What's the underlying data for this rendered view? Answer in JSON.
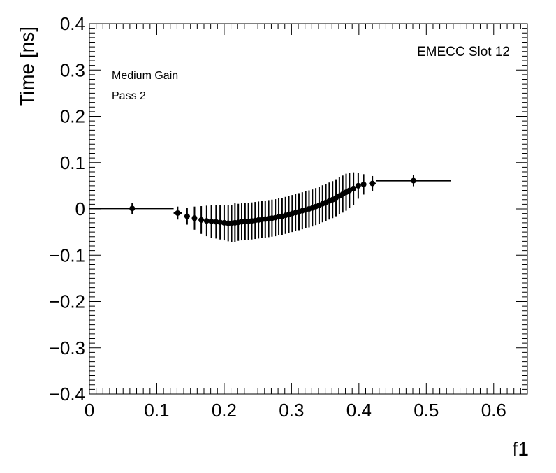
{
  "chart_data": {
    "type": "scatter",
    "title": "",
    "xlabel": "f1",
    "ylabel": "Time [ns]",
    "xlim": [
      0,
      0.65
    ],
    "ylim": [
      -0.4,
      0.4
    ],
    "x_ticks": [
      0,
      0.1,
      0.2,
      0.3,
      0.4,
      0.5,
      0.6
    ],
    "x_tick_labels": [
      "0",
      "0.1",
      "0.2",
      "0.3",
      "0.4",
      "0.5",
      "0.6"
    ],
    "y_ticks": [
      -0.4,
      -0.3,
      -0.2,
      -0.1,
      0,
      0.1,
      0.2,
      0.3,
      0.4
    ],
    "y_tick_labels": [
      "−0.4",
      "−0.3",
      "−0.2",
      "−0.1",
      "0",
      "0.1",
      "0.2",
      "0.3",
      "0.4"
    ],
    "grid": false,
    "annotations": {
      "top_right": "EMECC Slot 12",
      "top_left_line1": "Medium Gain",
      "top_left_line2": "Pass 2"
    },
    "series": [
      {
        "color": "#000000",
        "points": [
          {
            "x": 0.0635,
            "y": 0.001,
            "xerr": [
              0.0635,
              0.0615
            ],
            "yerr": 0.012
          },
          {
            "x": 0.131,
            "y": -0.009,
            "xerr": [
              0.006,
              0.006
            ],
            "yerr": 0.014
          },
          {
            "x": 0.145,
            "y": -0.016,
            "xerr": [
              0.004,
              0.004
            ],
            "yerr": 0.018
          },
          {
            "x": 0.156,
            "y": -0.02,
            "xerr": [
              0.003,
              0.003
            ],
            "yerr": 0.025
          },
          {
            "x": 0.166,
            "y": -0.024,
            "xerr": [
              0.002,
              0.002
            ],
            "yerr": 0.03
          },
          {
            "x": 0.174,
            "y": -0.026,
            "xerr": [
              0.002,
              0.002
            ],
            "yerr": 0.033
          },
          {
            "x": 0.181,
            "y": -0.027,
            "xerr": [
              0.002,
              0.002
            ],
            "yerr": 0.035
          },
          {
            "x": 0.188,
            "y": -0.028,
            "xerr": [
              0.002,
              0.002
            ],
            "yerr": 0.036
          },
          {
            "x": 0.194,
            "y": -0.029,
            "xerr": [
              0.002,
              0.002
            ],
            "yerr": 0.037
          },
          {
            "x": 0.2,
            "y": -0.03,
            "xerr": [
              0.002,
              0.002
            ],
            "yerr": 0.038
          },
          {
            "x": 0.206,
            "y": -0.031,
            "xerr": [
              0.002,
              0.002
            ],
            "yerr": 0.039
          },
          {
            "x": 0.211,
            "y": -0.031,
            "xerr": [
              0.002,
              0.002
            ],
            "yerr": 0.04
          },
          {
            "x": 0.216,
            "y": -0.03,
            "xerr": [
              0.002,
              0.002
            ],
            "yerr": 0.042
          },
          {
            "x": 0.221,
            "y": -0.029,
            "xerr": [
              0.002,
              0.002
            ],
            "yerr": 0.04
          },
          {
            "x": 0.226,
            "y": -0.028,
            "xerr": [
              0.002,
              0.002
            ],
            "yerr": 0.04
          },
          {
            "x": 0.231,
            "y": -0.027,
            "xerr": [
              0.002,
              0.002
            ],
            "yerr": 0.04
          },
          {
            "x": 0.236,
            "y": -0.027,
            "xerr": [
              0.002,
              0.002
            ],
            "yerr": 0.04
          },
          {
            "x": 0.241,
            "y": -0.026,
            "xerr": [
              0.002,
              0.002
            ],
            "yerr": 0.04
          },
          {
            "x": 0.246,
            "y": -0.025,
            "xerr": [
              0.002,
              0.002
            ],
            "yerr": 0.04
          },
          {
            "x": 0.251,
            "y": -0.024,
            "xerr": [
              0.002,
              0.002
            ],
            "yerr": 0.04
          },
          {
            "x": 0.256,
            "y": -0.023,
            "xerr": [
              0.002,
              0.002
            ],
            "yerr": 0.04
          },
          {
            "x": 0.261,
            "y": -0.022,
            "xerr": [
              0.002,
              0.002
            ],
            "yerr": 0.04
          },
          {
            "x": 0.266,
            "y": -0.021,
            "xerr": [
              0.002,
              0.002
            ],
            "yerr": 0.04
          },
          {
            "x": 0.271,
            "y": -0.02,
            "xerr": [
              0.002,
              0.002
            ],
            "yerr": 0.04
          },
          {
            "x": 0.276,
            "y": -0.019,
            "xerr": [
              0.002,
              0.002
            ],
            "yerr": 0.04
          },
          {
            "x": 0.281,
            "y": -0.017,
            "xerr": [
              0.002,
              0.002
            ],
            "yerr": 0.04
          },
          {
            "x": 0.286,
            "y": -0.016,
            "xerr": [
              0.002,
              0.002
            ],
            "yerr": 0.04
          },
          {
            "x": 0.291,
            "y": -0.014,
            "xerr": [
              0.002,
              0.002
            ],
            "yerr": 0.04
          },
          {
            "x": 0.296,
            "y": -0.012,
            "xerr": [
              0.002,
              0.002
            ],
            "yerr": 0.04
          },
          {
            "x": 0.301,
            "y": -0.01,
            "xerr": [
              0.002,
              0.002
            ],
            "yerr": 0.04
          },
          {
            "x": 0.306,
            "y": -0.008,
            "xerr": [
              0.002,
              0.002
            ],
            "yerr": 0.04
          },
          {
            "x": 0.311,
            "y": -0.006,
            "xerr": [
              0.002,
              0.002
            ],
            "yerr": 0.04
          },
          {
            "x": 0.316,
            "y": -0.004,
            "xerr": [
              0.002,
              0.002
            ],
            "yerr": 0.04
          },
          {
            "x": 0.321,
            "y": -0.002,
            "xerr": [
              0.002,
              0.002
            ],
            "yerr": 0.04
          },
          {
            "x": 0.326,
            "y": 0.0,
            "xerr": [
              0.002,
              0.002
            ],
            "yerr": 0.04
          },
          {
            "x": 0.331,
            "y": 0.002,
            "xerr": [
              0.002,
              0.002
            ],
            "yerr": 0.04
          },
          {
            "x": 0.336,
            "y": 0.005,
            "xerr": [
              0.002,
              0.002
            ],
            "yerr": 0.04
          },
          {
            "x": 0.341,
            "y": 0.008,
            "xerr": [
              0.002,
              0.002
            ],
            "yerr": 0.04
          },
          {
            "x": 0.346,
            "y": 0.011,
            "xerr": [
              0.002,
              0.002
            ],
            "yerr": 0.04
          },
          {
            "x": 0.351,
            "y": 0.014,
            "xerr": [
              0.002,
              0.002
            ],
            "yerr": 0.04
          },
          {
            "x": 0.356,
            "y": 0.017,
            "xerr": [
              0.002,
              0.002
            ],
            "yerr": 0.04
          },
          {
            "x": 0.361,
            "y": 0.02,
            "xerr": [
              0.002,
              0.002
            ],
            "yerr": 0.04
          },
          {
            "x": 0.366,
            "y": 0.024,
            "xerr": [
              0.002,
              0.002
            ],
            "yerr": 0.04
          },
          {
            "x": 0.371,
            "y": 0.028,
            "xerr": [
              0.002,
              0.002
            ],
            "yerr": 0.04
          },
          {
            "x": 0.376,
            "y": 0.032,
            "xerr": [
              0.002,
              0.002
            ],
            "yerr": 0.04
          },
          {
            "x": 0.381,
            "y": 0.036,
            "xerr": [
              0.002,
              0.002
            ],
            "yerr": 0.04
          },
          {
            "x": 0.386,
            "y": 0.04,
            "xerr": [
              0.002,
              0.002
            ],
            "yerr": 0.038
          },
          {
            "x": 0.392,
            "y": 0.044,
            "xerr": [
              0.002,
              0.002
            ],
            "yerr": 0.035
          },
          {
            "x": 0.399,
            "y": 0.05,
            "xerr": [
              0.003,
              0.003
            ],
            "yerr": 0.028
          },
          {
            "x": 0.407,
            "y": 0.053,
            "xerr": [
              0.004,
              0.004
            ],
            "yerr": 0.022
          },
          {
            "x": 0.42,
            "y": 0.055,
            "xerr": [
              0.005,
              0.005
            ],
            "yerr": 0.016
          },
          {
            "x": 0.481,
            "y": 0.061,
            "xerr": [
              0.056,
              0.056
            ],
            "yerr": 0.012
          }
        ]
      }
    ]
  }
}
